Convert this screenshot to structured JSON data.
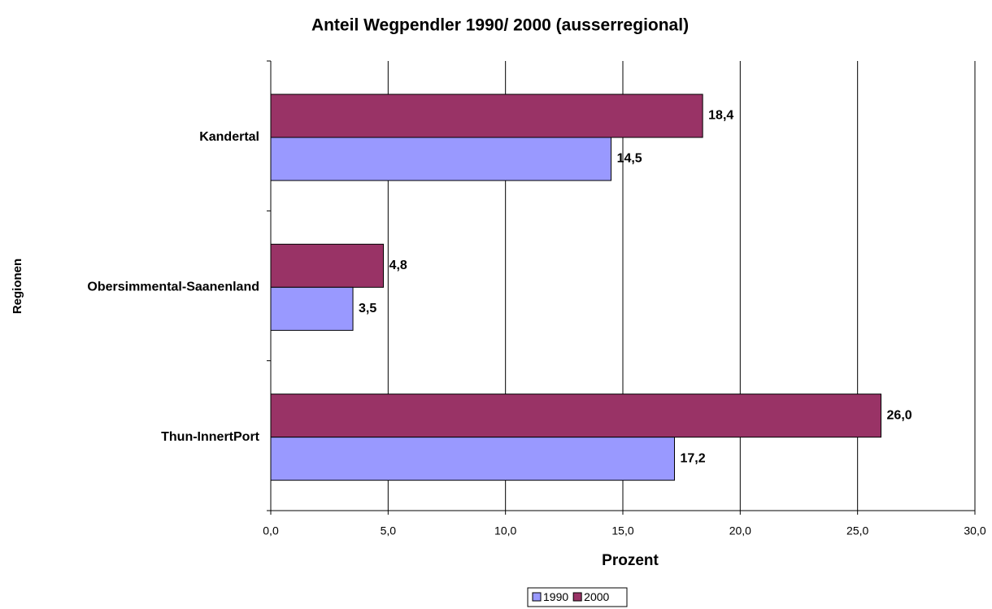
{
  "chart_data": {
    "type": "hbar",
    "title": "Anteil Wegpendler 1990/ 2000 (ausserregional)",
    "xlabel": "Prozent",
    "ylabel": "Regionen",
    "categories": [
      "Kandertal",
      "Obersimmental-Saanenland",
      "Thun-InnertPort"
    ],
    "series": [
      {
        "name": "1990",
        "color": "#9999ff",
        "values": [
          14.5,
          3.5,
          17.2
        ],
        "value_labels": [
          "14,5",
          "3,5",
          "17,2"
        ]
      },
      {
        "name": "2000",
        "color": "#993366",
        "values": [
          18.4,
          4.8,
          26.0
        ],
        "value_labels": [
          "18,4",
          "4,8",
          "26,0"
        ]
      }
    ],
    "xlim": [
      0,
      30
    ],
    "xticks": [
      {
        "value": 0,
        "label": "0,0"
      },
      {
        "value": 5,
        "label": "5,0"
      },
      {
        "value": 10,
        "label": "10,0"
      },
      {
        "value": 15,
        "label": "15,0"
      },
      {
        "value": 20,
        "label": "20,0"
      },
      {
        "value": 25,
        "label": "25,0"
      },
      {
        "value": 30,
        "label": "30,0"
      }
    ],
    "grid": true,
    "legend": "bottom"
  }
}
